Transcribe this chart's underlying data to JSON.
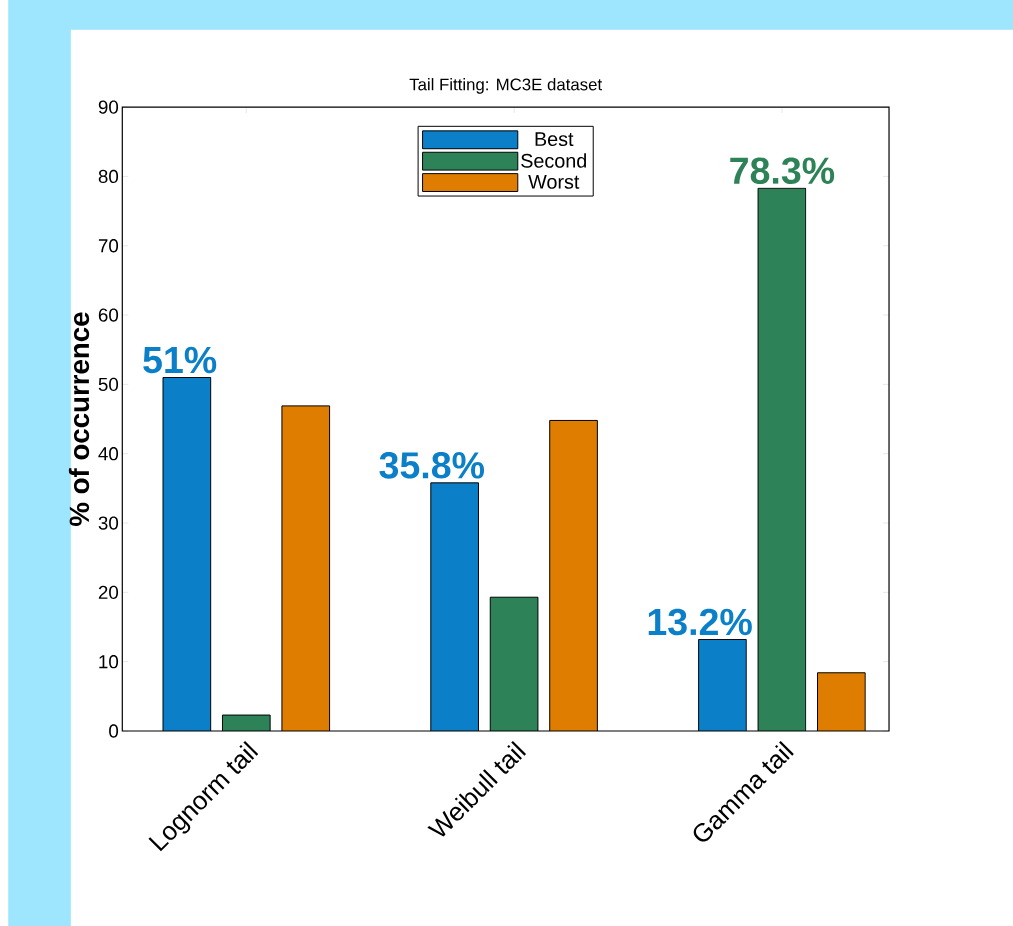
{
  "chart_data": {
    "type": "bar",
    "title": "Tail Fitting: MC3E dataset",
    "ylabel": "% of occurrence",
    "categories": [
      "Lognorm tail",
      "Weibull tail",
      "Gamma tail"
    ],
    "series": [
      {
        "name": "Best",
        "color": "#0b80c8",
        "values": [
          51,
          35.8,
          13.2
        ],
        "value_labels": [
          "51%",
          "35.8%",
          "13.2%"
        ]
      },
      {
        "name": "Second",
        "color": "#2d8257",
        "values": [
          2.3,
          19.3,
          78.3
        ],
        "value_labels": [
          null,
          null,
          "78.3%"
        ]
      },
      {
        "name": "Worst",
        "color": "#de7d00",
        "values": [
          46.9,
          44.8,
          8.4
        ]
      }
    ],
    "ylim": [
      0,
      90
    ],
    "yticks": [
      0,
      10,
      20,
      30,
      40,
      50,
      60,
      70,
      80,
      90
    ],
    "grid": false,
    "legend": "top"
  }
}
